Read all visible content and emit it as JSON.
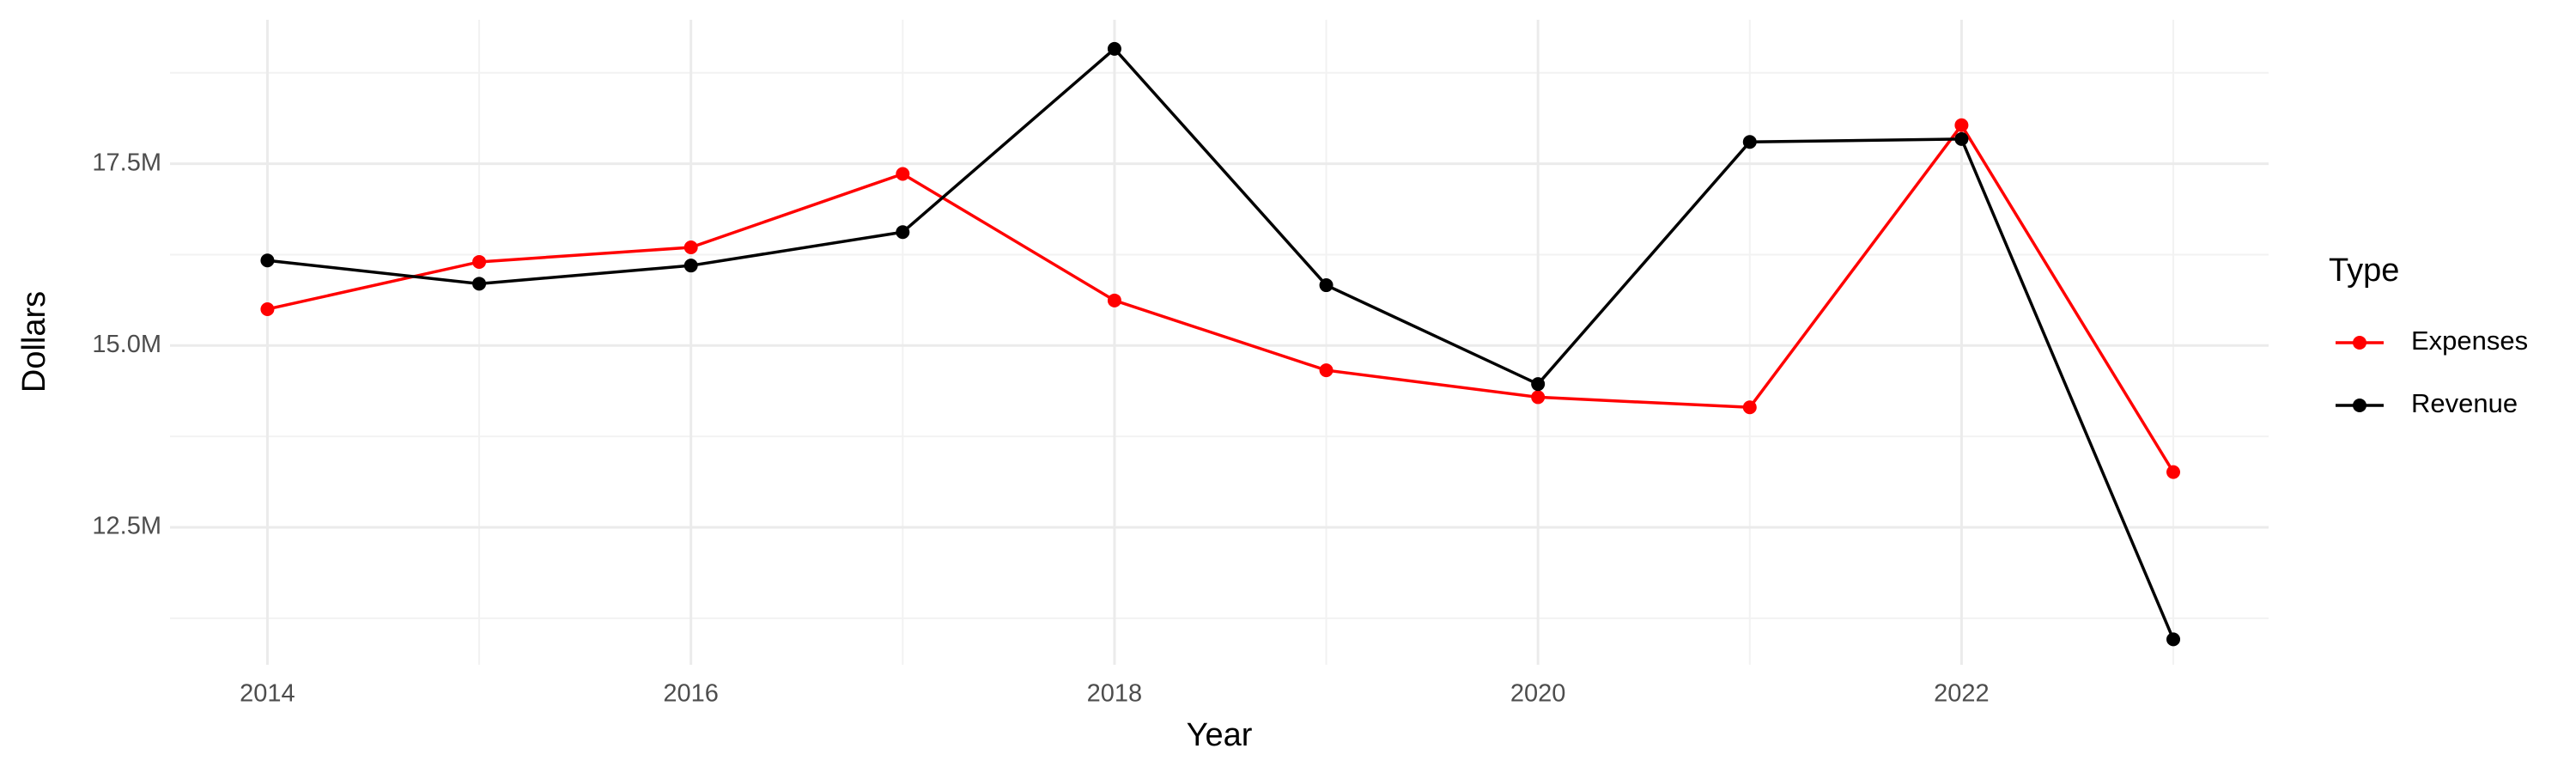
{
  "chart_data": {
    "type": "line",
    "x_label": "Year",
    "y_label": "Dollars",
    "legend_title": "Type",
    "legend_position": "right",
    "grid": true,
    "x": [
      2014,
      2015,
      2016,
      2017,
      2018,
      2019,
      2020,
      2021,
      2022,
      2023
    ],
    "series": [
      {
        "name": "Expenses",
        "color": "#ff0000",
        "values": [
          15500000,
          16150000,
          16350000,
          17360000,
          15620000,
          14660000,
          14290000,
          14150000,
          18030000,
          13260000
        ]
      },
      {
        "name": "Revenue",
        "color": "#000000",
        "values": [
          16170000,
          15850000,
          16100000,
          16560000,
          19080000,
          15830000,
          14470000,
          17800000,
          17840000,
          10960000
        ]
      }
    ],
    "xlim": [
      2013.54,
      2023.45
    ],
    "xticks": [
      2014,
      2016,
      2018,
      2020,
      2022
    ],
    "ylim": [
      10610000,
      19480000
    ],
    "yticks": [
      {
        "value": 12500000,
        "label": "12.5M"
      },
      {
        "value": 15000000,
        "label": "15.0M"
      },
      {
        "value": 17500000,
        "label": "17.5M"
      }
    ]
  }
}
